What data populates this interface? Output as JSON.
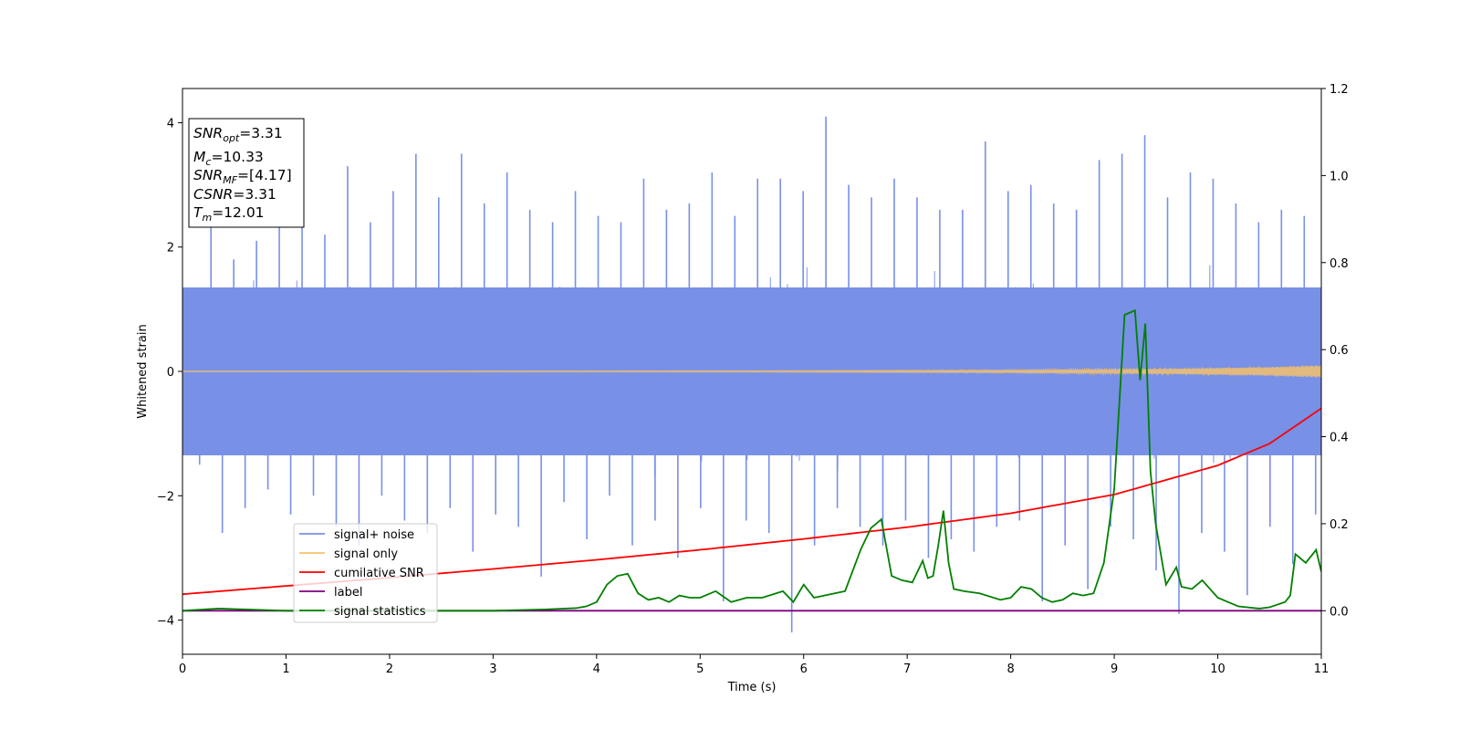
{
  "chart_data": {
    "type": "line",
    "xlabel": "Time (s)",
    "ylabel": "Whitened strain",
    "xlim": [
      0,
      11
    ],
    "ylim": [
      -4.55,
      4.55
    ],
    "y2lim": [
      -0.1,
      1.2
    ],
    "x_ticks": [
      "0",
      "1",
      "2",
      "3",
      "4",
      "5",
      "6",
      "7",
      "8",
      "9",
      "10",
      "11"
    ],
    "y_ticks": [
      "4",
      "2",
      "0",
      "−2",
      "−4"
    ],
    "y2_ticks": [
      "1.2",
      "1.0",
      "0.8",
      "0.6",
      "0.4",
      "0.2",
      "0.0"
    ],
    "legend_position": "lower-left",
    "grid": false,
    "info_box": {
      "lines": [
        {
          "main": "SNR",
          "sub": "opt",
          "value": "=3.31"
        },
        {
          "main": "M",
          "sub": "c",
          "value": "=10.33"
        },
        {
          "main": "SNR",
          "sub": "MF",
          "value": "=[4.17]"
        },
        {
          "main": "CSNR",
          "sub": "",
          "value": "=3.31"
        },
        {
          "main": "T",
          "sub": "m",
          "value": "=12.01"
        }
      ]
    },
    "series": [
      {
        "name": "signal+ noise",
        "axis": "left",
        "color": "#7890e6",
        "description": "dense noisy strain, roughly spanning -2.5 to 3 with spikes up to 4.1 and down to -4.2",
        "values": [
          0.2,
          -1.5,
          2.4,
          -2.6,
          1.8,
          -2.2,
          2.1,
          -1.9,
          2.6,
          -2.3,
          3.1,
          -2.0,
          2.2,
          -2.5,
          3.3,
          -2.8,
          2.4,
          -2.0,
          2.9,
          -2.4,
          3.5,
          -2.6,
          2.8,
          -2.2,
          3.5,
          -2.9,
          2.7,
          -2.3,
          3.2,
          -2.5,
          2.6,
          -3.3,
          2.4,
          -2.1,
          2.9,
          -2.7,
          2.5,
          -2.0,
          2.4,
          -2.8,
          3.1,
          -2.4,
          2.6,
          -3.0,
          2.7,
          -2.2,
          3.2,
          -3.7,
          2.5,
          -2.4,
          3.1,
          -2.6,
          3.1,
          -4.2,
          2.9,
          -2.8,
          4.1,
          -2.2,
          3.0,
          -2.5,
          2.8,
          -2.8,
          3.1,
          -2.4,
          2.8,
          -3.0,
          2.6,
          -2.7,
          2.6,
          -2.9,
          3.7,
          -2.5,
          2.9,
          -2.4,
          3.0,
          -3.7,
          2.7,
          -2.8,
          2.6,
          -3.5,
          3.4,
          -2.5,
          3.5,
          -2.7,
          3.8,
          -3.2,
          2.8,
          -3.9,
          3.2,
          -2.6,
          3.1,
          -2.9,
          2.7,
          -3.6,
          2.4,
          -2.5,
          2.6,
          -3.1,
          2.5,
          -2.3
        ]
      },
      {
        "name": "signal only",
        "axis": "left",
        "color": "#f5c26b",
        "description": "chirp signal, near zero with amplitude growing toward t=11",
        "x": [
          0,
          5.5,
          8,
          9.5,
          10.5,
          11
        ],
        "amplitude": [
          0.005,
          0.01,
          0.02,
          0.04,
          0.07,
          0.1
        ]
      },
      {
        "name": "cumilative SNR",
        "axis": "right",
        "color": "#ff0000",
        "x": [
          0,
          1,
          2,
          3,
          4,
          5,
          6,
          7,
          8,
          9,
          10,
          10.5,
          11
        ],
        "values": [
          0.038,
          0.057,
          0.076,
          0.096,
          0.117,
          0.14,
          0.165,
          0.192,
          0.224,
          0.267,
          0.334,
          0.384,
          0.465
        ]
      },
      {
        "name": "label",
        "axis": "right",
        "color": "#800080",
        "x": [
          0,
          11
        ],
        "values": [
          0.0,
          0.0
        ]
      },
      {
        "name": "signal statistics",
        "axis": "right",
        "color": "#008000",
        "x": [
          0,
          0.35,
          1,
          2,
          3,
          3.5,
          3.8,
          3.9,
          4.0,
          4.1,
          4.2,
          4.3,
          4.4,
          4.5,
          4.6,
          4.7,
          4.8,
          4.9,
          5.0,
          5.15,
          5.3,
          5.45,
          5.6,
          5.8,
          5.9,
          6.0,
          6.1,
          6.2,
          6.4,
          6.55,
          6.65,
          6.75,
          6.85,
          6.95,
          7.05,
          7.1,
          7.15,
          7.2,
          7.25,
          7.3,
          7.35,
          7.4,
          7.45,
          7.55,
          7.7,
          7.9,
          8.0,
          8.1,
          8.2,
          8.3,
          8.4,
          8.5,
          8.6,
          8.7,
          8.8,
          8.9,
          9.0,
          9.05,
          9.1,
          9.15,
          9.2,
          9.25,
          9.3,
          9.35,
          9.4,
          9.5,
          9.6,
          9.65,
          9.75,
          9.85,
          10.0,
          10.1,
          10.2,
          10.4,
          10.5,
          10.65,
          10.7,
          10.75,
          10.85,
          10.95,
          11.0
        ],
        "values": [
          0.0,
          0.005,
          0.0,
          0.0,
          0.0,
          0.003,
          0.006,
          0.01,
          0.02,
          0.06,
          0.08,
          0.085,
          0.04,
          0.025,
          0.03,
          0.02,
          0.035,
          0.03,
          0.03,
          0.045,
          0.02,
          0.03,
          0.03,
          0.045,
          0.02,
          0.06,
          0.03,
          0.035,
          0.045,
          0.14,
          0.19,
          0.21,
          0.08,
          0.07,
          0.065,
          0.09,
          0.115,
          0.075,
          0.08,
          0.15,
          0.23,
          0.11,
          0.05,
          0.045,
          0.04,
          0.025,
          0.03,
          0.055,
          0.05,
          0.03,
          0.02,
          0.025,
          0.04,
          0.035,
          0.04,
          0.11,
          0.28,
          0.48,
          0.68,
          0.685,
          0.69,
          0.53,
          0.66,
          0.32,
          0.2,
          0.06,
          0.1,
          0.055,
          0.05,
          0.07,
          0.03,
          0.02,
          0.01,
          0.005,
          0.008,
          0.02,
          0.035,
          0.13,
          0.11,
          0.14,
          0.09
        ]
      }
    ]
  }
}
